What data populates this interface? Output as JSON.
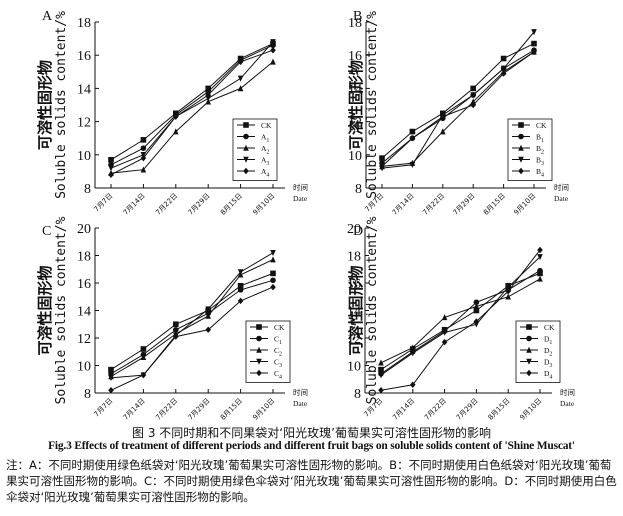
{
  "figure": {
    "caption_cn": "图 3  不同时期和不同果袋对‘阳光玫瑰’葡萄果实可溶性固形物的影响",
    "caption_en": "Fig.3  Effects of treatment of different periods and different fruit bags on soluble solids content of 'Shine Muscat'",
    "note": "注：A：不同时期使用绿色纸袋对‘阳光玫瑰’葡萄果实可溶性固形物的影响。B：不同时期使用白色纸袋对‘阳光玫瑰’葡萄果实可溶性固形物的影响。C：不同时期使用绿色伞袋对‘阳光玫瑰’葡萄果实可溶性固形物的影响。D：不同时期使用白色伞袋对‘阳光玫瑰’葡萄果实可溶性固形物的影响。"
  },
  "chart_data": [
    {
      "panel": "A",
      "type": "line",
      "ylabel_cn": "可溶性固形物",
      "ylabel_en": "Soluble solids content/%",
      "xlabel_cn": "时间",
      "xlabel_en": "Date",
      "categories": [
        "7月7日",
        "7月14日",
        "7月22日",
        "7月29日",
        "8月15日",
        "9月10日"
      ],
      "ylim": [
        8,
        18
      ],
      "yticks": [
        8,
        10,
        12,
        14,
        16,
        18
      ],
      "series": [
        {
          "name": "CK",
          "sub": "",
          "marker": "square",
          "values": [
            9.7,
            10.9,
            12.5,
            14.0,
            15.8,
            16.7
          ]
        },
        {
          "name": "A",
          "sub": "1",
          "marker": "circle",
          "values": [
            9.4,
            10.4,
            12.4,
            13.8,
            15.7,
            16.6
          ]
        },
        {
          "name": "A",
          "sub": "2",
          "marker": "triangle-up",
          "values": [
            8.9,
            9.1,
            11.4,
            13.2,
            14.0,
            15.6
          ]
        },
        {
          "name": "A",
          "sub": "3",
          "marker": "triangle-down",
          "values": [
            9.2,
            10.0,
            12.3,
            13.4,
            14.6,
            16.8
          ]
        },
        {
          "name": "A",
          "sub": "4",
          "marker": "diamond",
          "values": [
            8.8,
            9.8,
            12.3,
            13.6,
            15.6,
            16.3
          ]
        }
      ]
    },
    {
      "panel": "B",
      "type": "line",
      "ylabel_cn": "可溶性固形物",
      "ylabel_en": "Soluble solids content/%",
      "xlabel_cn": "时间",
      "xlabel_en": "Date",
      "categories": [
        "7月7日",
        "7月14日",
        "7月22日",
        "7月29日",
        "8月15日",
        "9月10日"
      ],
      "ylim": [
        8,
        18
      ],
      "yticks": [
        8,
        10,
        12,
        14,
        16,
        18
      ],
      "series": [
        {
          "name": "CK",
          "sub": "",
          "marker": "square",
          "values": [
            9.8,
            11.4,
            12.5,
            14.0,
            15.8,
            16.7
          ]
        },
        {
          "name": "B",
          "sub": "1",
          "marker": "circle",
          "values": [
            9.5,
            11.0,
            12.2,
            13.6,
            15.2,
            16.3
          ]
        },
        {
          "name": "B",
          "sub": "2",
          "marker": "triangle-up",
          "values": [
            9.3,
            9.5,
            11.4,
            13.2,
            15.0,
            16.2
          ]
        },
        {
          "name": "B",
          "sub": "3",
          "marker": "triangle-down",
          "values": [
            9.2,
            9.4,
            12.4,
            13.6,
            15.2,
            17.4
          ]
        },
        {
          "name": "B",
          "sub": "4",
          "marker": "diamond",
          "values": [
            9.3,
            11.0,
            12.3,
            13.0,
            14.9,
            16.2
          ]
        }
      ]
    },
    {
      "panel": "C",
      "type": "line",
      "ylabel_cn": "可溶性固形物",
      "ylabel_en": "Soluble solids content/%",
      "xlabel_cn": "时间",
      "xlabel_en": "Date",
      "categories": [
        "7月7日",
        "7月14日",
        "7月22日",
        "7月29日",
        "8月15日",
        "9月10日"
      ],
      "ylim": [
        8,
        20
      ],
      "yticks": [
        8,
        10,
        12,
        14,
        16,
        18,
        20
      ],
      "series": [
        {
          "name": "CK",
          "sub": "",
          "marker": "square",
          "values": [
            9.7,
            11.2,
            13.0,
            14.0,
            15.8,
            16.7
          ]
        },
        {
          "name": "C",
          "sub": "1",
          "marker": "circle",
          "values": [
            9.4,
            10.8,
            12.6,
            13.8,
            15.5,
            16.2
          ]
        },
        {
          "name": "C",
          "sub": "2",
          "marker": "triangle-up",
          "values": [
            9.2,
            10.6,
            12.3,
            13.6,
            16.6,
            17.7
          ]
        },
        {
          "name": "C",
          "sub": "3",
          "marker": "triangle-down",
          "values": [
            9.1,
            9.3,
            12.2,
            14.1,
            16.8,
            18.2
          ]
        },
        {
          "name": "C",
          "sub": "4",
          "marker": "diamond",
          "values": [
            8.2,
            9.3,
            12.1,
            12.6,
            14.7,
            15.7
          ]
        }
      ]
    },
    {
      "panel": "D",
      "type": "line",
      "ylabel_cn": "可溶性固形物",
      "ylabel_en": "Soluble solids content/%",
      "xlabel_cn": "时间",
      "xlabel_en": "Date",
      "categories": [
        "7月7日",
        "7月14日",
        "7月22日",
        "7月29日",
        "8月15日",
        "9月10日"
      ],
      "ylim": [
        8,
        20
      ],
      "yticks": [
        8,
        10,
        12,
        14,
        16,
        18,
        20
      ],
      "series": [
        {
          "name": "CK",
          "sub": "",
          "marker": "square",
          "values": [
            9.7,
            11.2,
            12.6,
            14.0,
            15.8,
            16.7
          ]
        },
        {
          "name": "D",
          "sub": "1",
          "marker": "circle",
          "values": [
            9.4,
            11.0,
            12.5,
            14.6,
            15.5,
            16.9
          ]
        },
        {
          "name": "D",
          "sub": "2",
          "marker": "triangle-up",
          "values": [
            10.2,
            11.3,
            13.5,
            14.3,
            15.0,
            16.3
          ]
        },
        {
          "name": "D",
          "sub": "3",
          "marker": "triangle-down",
          "values": [
            9.3,
            10.9,
            12.4,
            13.0,
            15.7,
            17.9
          ]
        },
        {
          "name": "D",
          "sub": "4",
          "marker": "diamond",
          "values": [
            8.2,
            8.6,
            11.7,
            13.2,
            15.4,
            18.4
          ]
        }
      ]
    }
  ]
}
